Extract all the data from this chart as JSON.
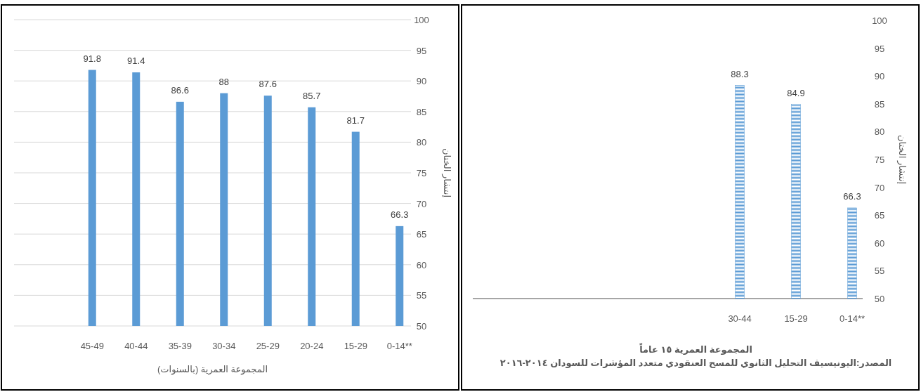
{
  "chart_data": [
    {
      "type": "bar",
      "categories": [
        "45-49",
        "40-44",
        "35-39",
        "30-34",
        "25-29",
        "20-24",
        "15-29",
        "0-14**"
      ],
      "values": [
        91.8,
        91.4,
        86.6,
        88,
        87.6,
        85.7,
        81.7,
        66.3
      ],
      "color": "#5b9bd5",
      "ylim": [
        50,
        100
      ],
      "yticks": [
        50,
        55,
        60,
        65,
        70,
        75,
        80,
        85,
        90,
        95,
        100
      ],
      "ylabel": "إنتشار الختان",
      "xlabel": "المجموعة العمرية (بالسنوات)",
      "grid": "y",
      "data_labels": true
    },
    {
      "type": "bar",
      "categories": [
        "30-44",
        "15-29",
        "0-14**"
      ],
      "values": [
        88.3,
        84.9,
        66.3
      ],
      "color": "#5b9bd5",
      "ylim": [
        50,
        100
      ],
      "yticks": [
        50,
        55,
        60,
        65,
        70,
        75,
        80,
        85,
        90,
        95,
        100
      ],
      "ylabel": "إنتشار الختان",
      "xlabel": "المجموعة العمرية ١٥ عاماً",
      "annotations": [
        "المصدر:اليونيسيف التحليل الثانوي للمسح العنقودي متعدد المؤشرات للسودان ٢٠١٤-٢٠١٦"
      ],
      "grid": false,
      "data_labels": true
    }
  ]
}
